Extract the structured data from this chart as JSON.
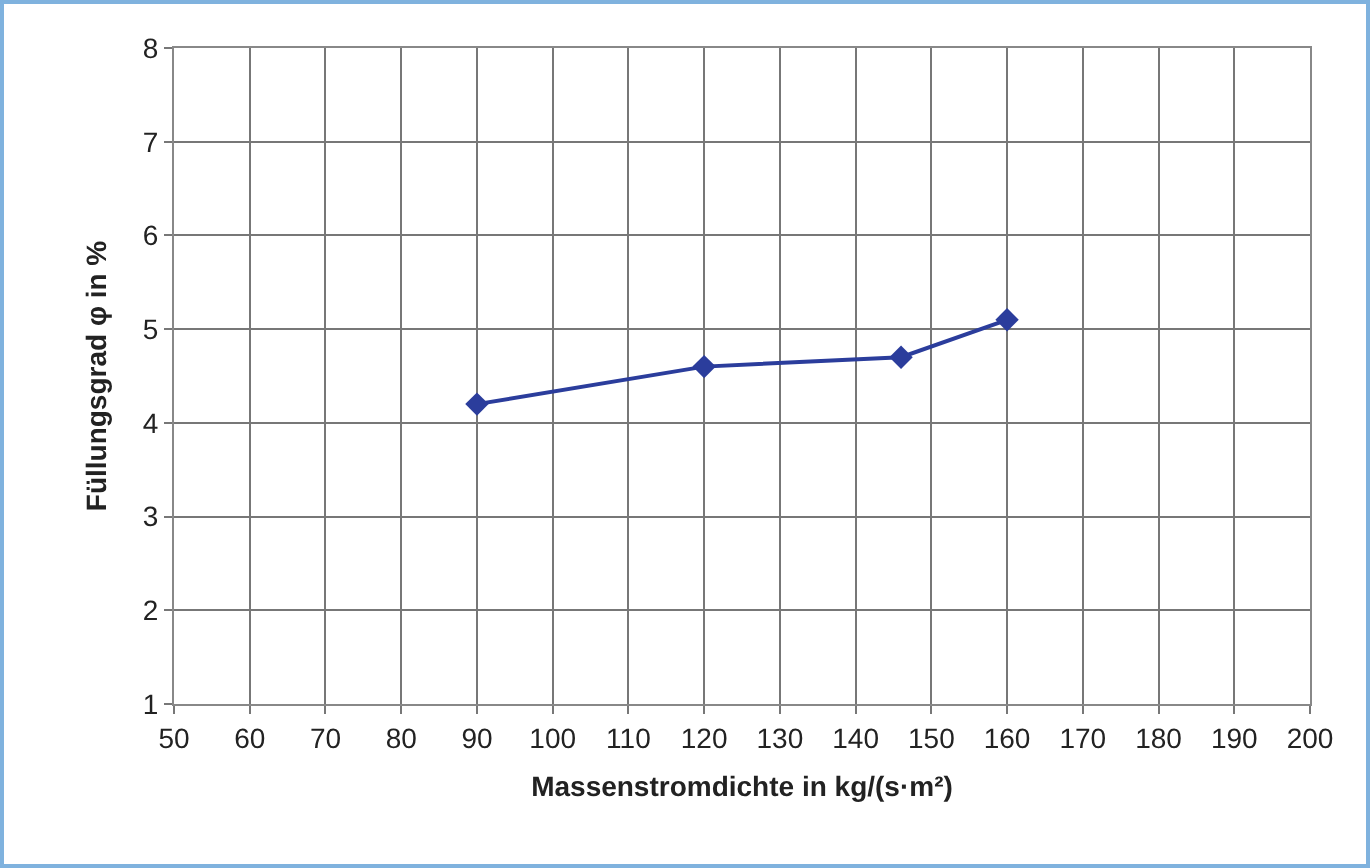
{
  "chart_data": {
    "type": "line",
    "xlabel": "Massenstromdichte in kg/(s·m²)",
    "ylabel": "Füllungsgrad φ in %",
    "x": [
      90,
      120,
      146,
      160
    ],
    "series": [
      {
        "color": "#2b3d9c",
        "values": [
          4.2,
          4.6,
          4.7,
          5.1
        ]
      }
    ],
    "xlim": [
      50,
      200
    ],
    "xticks": [
      50,
      60,
      70,
      80,
      90,
      100,
      110,
      120,
      130,
      140,
      150,
      160,
      170,
      180,
      190,
      200
    ],
    "ylim": [
      1,
      8
    ],
    "yticks": [
      1,
      2,
      3,
      4,
      5,
      6,
      7,
      8
    ],
    "grid": true,
    "marker": "diamond",
    "line_style": "solid"
  }
}
